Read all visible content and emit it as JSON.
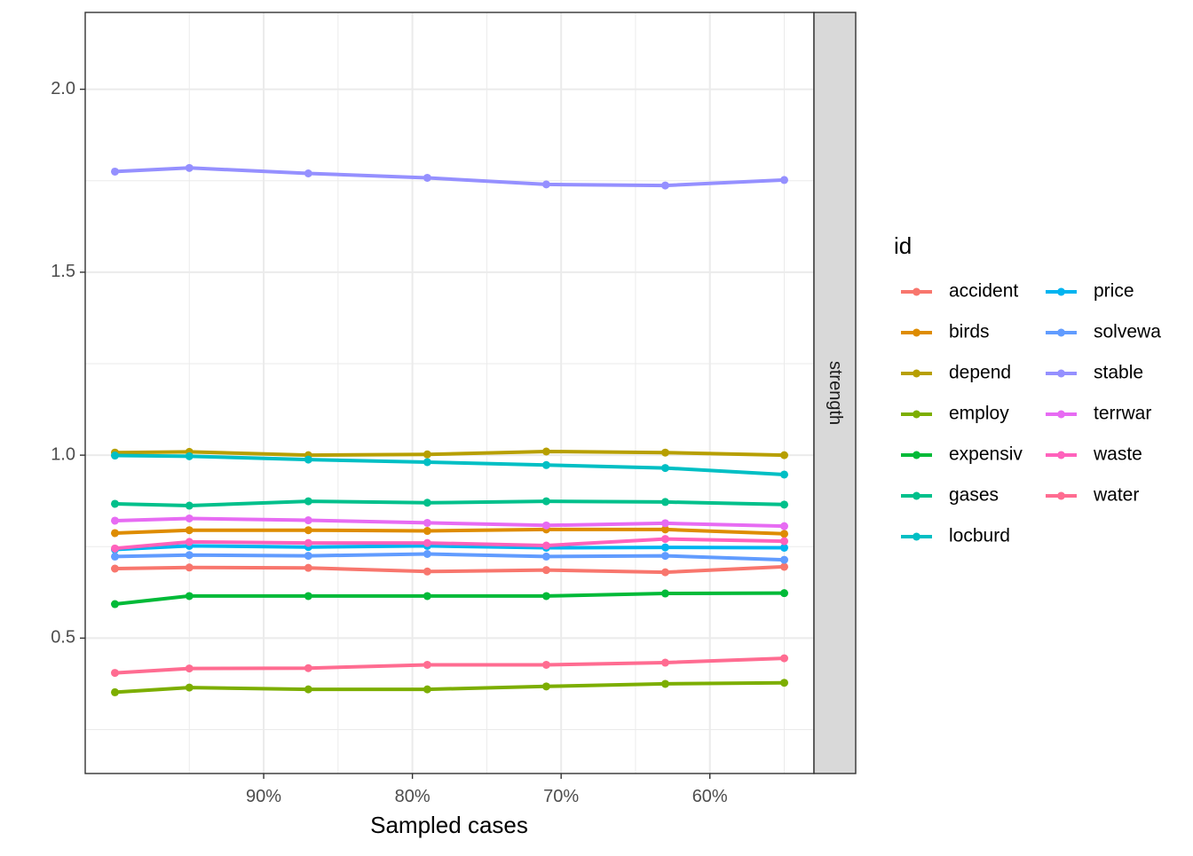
{
  "chart_data": {
    "type": "line",
    "xlabel": "Sampled cases",
    "ylabel": "",
    "facet_label": "strength",
    "legend_title": "id",
    "legend_position": "right",
    "grid": true,
    "x_reversed": true,
    "x": [
      1.0,
      0.95,
      0.87,
      0.79,
      0.71,
      0.63,
      0.55
    ],
    "xlim": [
      1.02,
      0.53
    ],
    "x_ticks": [
      {
        "value": 0.9,
        "label": "90%"
      },
      {
        "value": 0.8,
        "label": "80%"
      },
      {
        "value": 0.7,
        "label": "70%"
      },
      {
        "value": 0.6,
        "label": "60%"
      }
    ],
    "ylim": [
      0.13,
      2.21
    ],
    "y_ticks": [
      {
        "value": 0.5,
        "label": "0.5"
      },
      {
        "value": 1.0,
        "label": "1.0"
      },
      {
        "value": 1.5,
        "label": "1.5"
      },
      {
        "value": 2.0,
        "label": "2.0"
      }
    ],
    "series": [
      {
        "name": "accident",
        "color": "#F8766D",
        "values": [
          0.69,
          0.693,
          0.692,
          0.682,
          0.686,
          0.68,
          0.695
        ]
      },
      {
        "name": "birds",
        "color": "#DE8C00",
        "values": [
          0.787,
          0.795,
          0.795,
          0.793,
          0.797,
          0.797,
          0.785
        ]
      },
      {
        "name": "depend",
        "color": "#B79F00",
        "values": [
          1.007,
          1.009,
          1.0,
          1.002,
          1.01,
          1.007,
          1.0
        ]
      },
      {
        "name": "employ",
        "color": "#7CAE00",
        "values": [
          0.352,
          0.365,
          0.36,
          0.36,
          0.368,
          0.375,
          0.378
        ]
      },
      {
        "name": "expensiv",
        "color": "#00BA38",
        "values": [
          0.593,
          0.615,
          0.615,
          0.615,
          0.615,
          0.622,
          0.623
        ]
      },
      {
        "name": "gases",
        "color": "#00C08B",
        "values": [
          0.867,
          0.862,
          0.874,
          0.87,
          0.874,
          0.872,
          0.865
        ]
      },
      {
        "name": "locburd",
        "color": "#00BFC4",
        "values": [
          0.999,
          0.997,
          0.988,
          0.981,
          0.973,
          0.965,
          0.947
        ]
      },
      {
        "name": "price",
        "color": "#00B4F0",
        "values": [
          0.742,
          0.752,
          0.749,
          0.752,
          0.747,
          0.748,
          0.747
        ]
      },
      {
        "name": "solvewa",
        "color": "#619CFF",
        "values": [
          0.723,
          0.727,
          0.725,
          0.73,
          0.723,
          0.725,
          0.714
        ]
      },
      {
        "name": "stable",
        "color": "#9590FF",
        "values": [
          1.775,
          1.785,
          1.77,
          1.758,
          1.74,
          1.737,
          1.752
        ]
      },
      {
        "name": "terrwar",
        "color": "#E76BF3",
        "values": [
          0.821,
          0.827,
          0.822,
          0.815,
          0.808,
          0.814,
          0.806
        ]
      },
      {
        "name": "waste",
        "color": "#FF62BC",
        "values": [
          0.745,
          0.763,
          0.76,
          0.76,
          0.753,
          0.771,
          0.765
        ]
      },
      {
        "name": "water",
        "color": "#FF6C91",
        "values": [
          0.405,
          0.417,
          0.418,
          0.427,
          0.427,
          0.433,
          0.445
        ]
      }
    ]
  }
}
